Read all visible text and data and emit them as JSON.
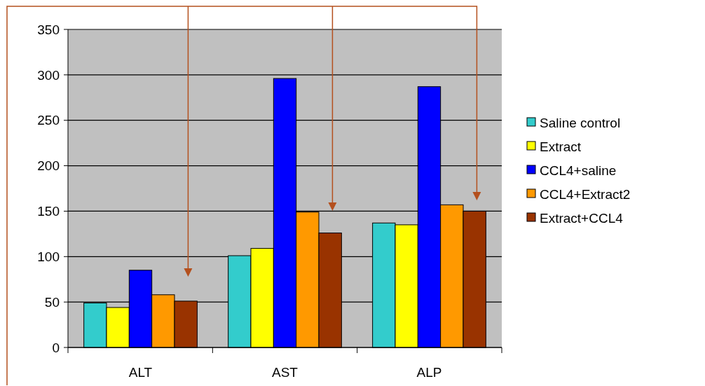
{
  "chart_data": {
    "type": "bar",
    "categories": [
      "ALT",
      "AST",
      "ALP"
    ],
    "series": [
      {
        "name": "Saline control",
        "color": "#33cccc",
        "values": [
          49,
          101,
          137
        ]
      },
      {
        "name": "Extract",
        "color": "#ffff00",
        "values": [
          44,
          109,
          135
        ]
      },
      {
        "name": "CCL4+saline",
        "color": "#0000ff",
        "values": [
          85,
          296,
          287
        ]
      },
      {
        "name": "CCL4+Extract2",
        "color": "#ff9900",
        "values": [
          58,
          149,
          157
        ]
      },
      {
        "name": "Extract+CCL4",
        "color": "#993300",
        "values": [
          51,
          126,
          150
        ]
      }
    ],
    "ylim": [
      0,
      350
    ],
    "yticks": [
      0,
      50,
      100,
      150,
      200,
      250,
      300,
      350
    ],
    "grid": "y",
    "legend": "right"
  }
}
